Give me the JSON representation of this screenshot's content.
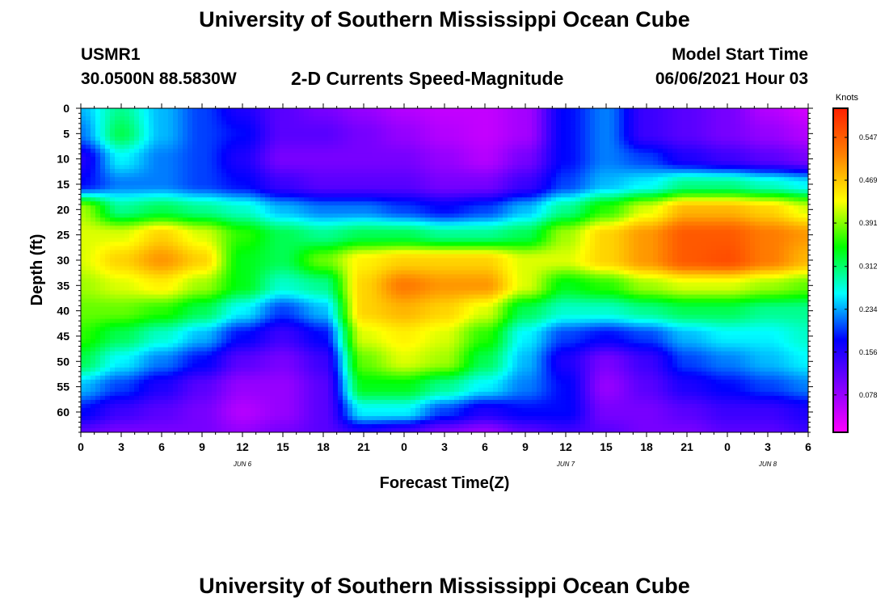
{
  "title": "University of Southern Mississippi Ocean Cube",
  "footer_title": "University of Southern Mississippi Ocean Cube",
  "station": {
    "id": "USMR1",
    "location": "30.0500N  88.5830W"
  },
  "model": {
    "label": "Model Start Time",
    "start": "06/06/2021 Hour 03"
  },
  "chart_data": {
    "type": "heatmap",
    "title": "2-D Currents Speed-Magnitude",
    "xlabel": "Forecast Time(Z)",
    "ylabel": "Depth (ft)",
    "x_hours": [
      0,
      3,
      6,
      9,
      12,
      15,
      18,
      21,
      24,
      27,
      30,
      33,
      36,
      39,
      42,
      45,
      48,
      51,
      54
    ],
    "x_tick_labels": [
      "0",
      "3",
      "6",
      "9",
      "12",
      "15",
      "18",
      "21",
      "0",
      "3",
      "6",
      "9",
      "12",
      "15",
      "18",
      "21",
      "0",
      "3",
      "6"
    ],
    "x_range": [
      0,
      54
    ],
    "day_labels": [
      {
        "text": "JUN 6",
        "hour": 12
      },
      {
        "text": "JUN 7",
        "hour": 36
      },
      {
        "text": "JUN 8",
        "hour": 51
      }
    ],
    "y_ticks": [
      0,
      5,
      10,
      15,
      20,
      25,
      30,
      35,
      40,
      45,
      50,
      55,
      60
    ],
    "y_range": [
      0,
      64
    ],
    "depth_rows": [
      0,
      5,
      10,
      15,
      20,
      25,
      30,
      35,
      40,
      45,
      50,
      55,
      60,
      64
    ],
    "speed_knots": [
      [
        0.24,
        0.3,
        0.24,
        0.2,
        0.16,
        0.12,
        0.1,
        0.08,
        0.06,
        0.05,
        0.05,
        0.07,
        0.18,
        0.22,
        0.14,
        0.12,
        0.1,
        0.06,
        0.04
      ],
      [
        0.22,
        0.32,
        0.24,
        0.2,
        0.18,
        0.12,
        0.12,
        0.1,
        0.08,
        0.06,
        0.05,
        0.07,
        0.18,
        0.22,
        0.14,
        0.12,
        0.1,
        0.08,
        0.06
      ],
      [
        0.16,
        0.26,
        0.22,
        0.2,
        0.16,
        0.1,
        0.1,
        0.1,
        0.1,
        0.08,
        0.06,
        0.1,
        0.18,
        0.22,
        0.2,
        0.16,
        0.14,
        0.12,
        0.1
      ],
      [
        0.18,
        0.22,
        0.22,
        0.2,
        0.18,
        0.14,
        0.12,
        0.12,
        0.12,
        0.1,
        0.1,
        0.14,
        0.2,
        0.24,
        0.26,
        0.3,
        0.3,
        0.28,
        0.26
      ],
      [
        0.4,
        0.3,
        0.32,
        0.3,
        0.28,
        0.24,
        0.22,
        0.22,
        0.2,
        0.18,
        0.2,
        0.24,
        0.3,
        0.36,
        0.42,
        0.48,
        0.48,
        0.46,
        0.42
      ],
      [
        0.42,
        0.42,
        0.46,
        0.42,
        0.36,
        0.32,
        0.3,
        0.32,
        0.32,
        0.3,
        0.3,
        0.32,
        0.4,
        0.46,
        0.5,
        0.55,
        0.55,
        0.52,
        0.5
      ],
      [
        0.42,
        0.46,
        0.5,
        0.46,
        0.34,
        0.32,
        0.38,
        0.44,
        0.46,
        0.46,
        0.46,
        0.42,
        0.42,
        0.46,
        0.5,
        0.55,
        0.56,
        0.52,
        0.48
      ],
      [
        0.4,
        0.42,
        0.44,
        0.4,
        0.34,
        0.28,
        0.3,
        0.46,
        0.52,
        0.5,
        0.5,
        0.42,
        0.34,
        0.36,
        0.4,
        0.42,
        0.42,
        0.4,
        0.38
      ],
      [
        0.38,
        0.38,
        0.36,
        0.32,
        0.26,
        0.2,
        0.24,
        0.46,
        0.48,
        0.46,
        0.42,
        0.32,
        0.28,
        0.28,
        0.3,
        0.32,
        0.32,
        0.3,
        0.3
      ],
      [
        0.36,
        0.32,
        0.28,
        0.24,
        0.18,
        0.14,
        0.18,
        0.42,
        0.44,
        0.42,
        0.36,
        0.26,
        0.2,
        0.18,
        0.2,
        0.24,
        0.26,
        0.26,
        0.28
      ],
      [
        0.32,
        0.26,
        0.22,
        0.18,
        0.12,
        0.1,
        0.14,
        0.38,
        0.42,
        0.4,
        0.32,
        0.24,
        0.16,
        0.1,
        0.14,
        0.2,
        0.22,
        0.24,
        0.26
      ],
      [
        0.24,
        0.2,
        0.16,
        0.12,
        0.08,
        0.08,
        0.12,
        0.34,
        0.34,
        0.3,
        0.26,
        0.22,
        0.18,
        0.08,
        0.12,
        0.16,
        0.18,
        0.2,
        0.22
      ],
      [
        0.18,
        0.14,
        0.12,
        0.1,
        0.06,
        0.08,
        0.12,
        0.26,
        0.26,
        0.2,
        0.16,
        0.18,
        0.18,
        0.1,
        0.1,
        0.12,
        0.14,
        0.14,
        0.16
      ],
      [
        0.12,
        0.1,
        0.1,
        0.1,
        0.08,
        0.1,
        0.12,
        0.16,
        0.14,
        0.1,
        0.08,
        0.12,
        0.14,
        0.12,
        0.1,
        0.1,
        0.12,
        0.12,
        0.14
      ]
    ],
    "colorbar": {
      "unit": "Knots",
      "ticks": [
        0.078,
        0.156,
        0.234,
        0.312,
        0.391,
        0.469,
        0.547
      ],
      "tick_labels": [
        "0.078",
        "0.156",
        "0.234",
        "0.312",
        "0.391",
        "0.469",
        "0.547"
      ],
      "range": [
        0.01,
        0.6
      ],
      "colors": [
        "#ff00ff",
        "#8000ff",
        "#0000ff",
        "#00ffff",
        "#00ff00",
        "#ffff00",
        "#ff8000",
        "#ff2000"
      ]
    }
  }
}
